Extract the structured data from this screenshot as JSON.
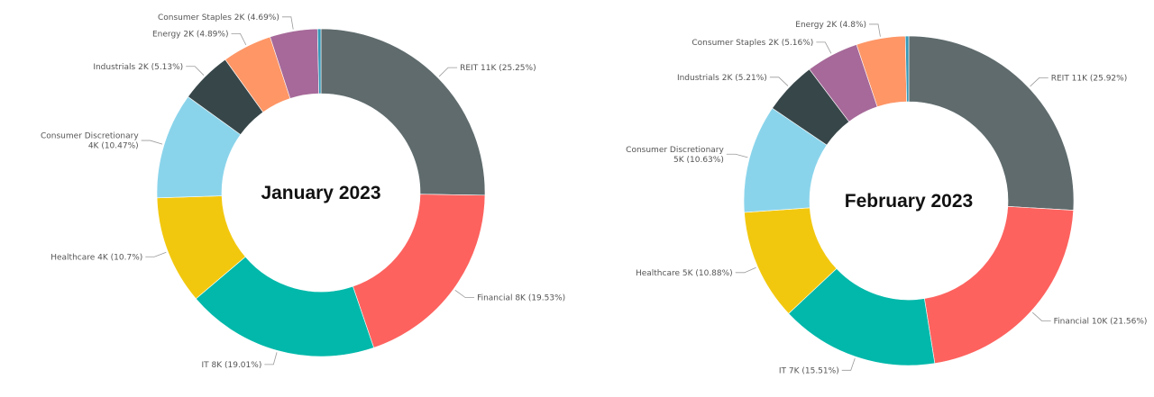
{
  "colors": {
    "REIT": "#5f6b6d",
    "Financial": "#fd625e",
    "IT": "#01b8aa",
    "Healthcare": "#f2c80f",
    "Consumer Discretionary": "#8ad4eb",
    "Industrials": "#374649",
    "Energy": "#fe9666",
    "Consumer Staples": "#a66999",
    "Other": "#3599b8"
  },
  "chart_data": [
    {
      "type": "pie",
      "variant": "donut",
      "title": "January 2023",
      "legend": "none",
      "categories": [
        "REIT",
        "Financial",
        "IT",
        "Healthcare",
        "Consumer Discretionary",
        "Industrials",
        "Energy",
        "Consumer Staples",
        "Other"
      ],
      "values": [
        25.25,
        19.53,
        19.01,
        10.7,
        10.47,
        5.13,
        4.89,
        4.69,
        0.33
      ],
      "data_labels": [
        [
          "REIT 11K (25.25%)"
        ],
        [
          "Financial 8K (19.53%)"
        ],
        [
          "IT 8K (19.01%)"
        ],
        [
          "Healthcare 4K (10.7%)"
        ],
        [
          "Consumer Discretionary",
          "4K (10.47%)"
        ],
        [
          "Industrials 2K (5.13%)"
        ],
        [
          "Energy 2K (4.89%)"
        ],
        [
          "Consumer Staples 2K (4.69%)"
        ],
        []
      ]
    },
    {
      "type": "pie",
      "variant": "donut",
      "title": "February 2023",
      "legend": "none",
      "categories": [
        "REIT",
        "Financial",
        "IT",
        "Healthcare",
        "Consumer Discretionary",
        "Industrials",
        "Consumer Staples",
        "Energy",
        "Other"
      ],
      "values": [
        25.92,
        21.56,
        15.51,
        10.88,
        10.63,
        5.21,
        5.16,
        4.8,
        0.33
      ],
      "data_labels": [
        [
          "REIT 11K (25.92%)"
        ],
        [
          "Financial 10K (21.56%)"
        ],
        [
          "IT 7K (15.51%)"
        ],
        [
          "Healthcare 5K (10.88%)"
        ],
        [
          "Consumer Discretionary",
          "5K (10.63%)"
        ],
        [
          "Industrials 2K (5.21%)"
        ],
        [
          "Consumer Staples 2K (5.16%)"
        ],
        [
          "Energy 2K (4.8%)"
        ],
        []
      ]
    }
  ]
}
